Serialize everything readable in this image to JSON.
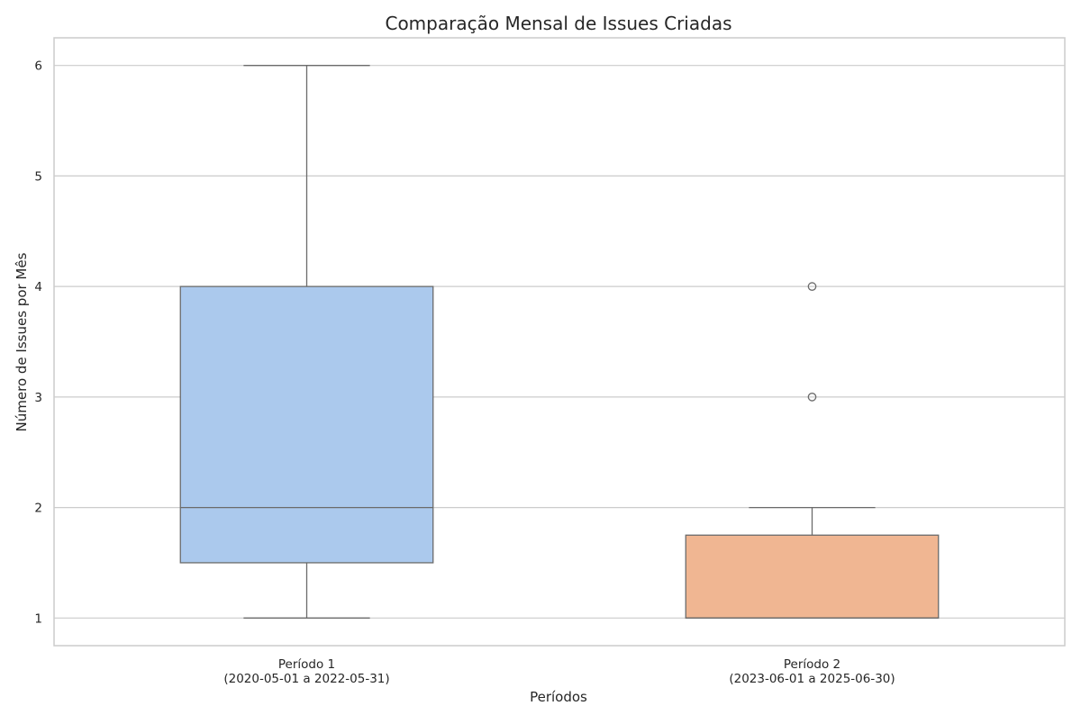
{
  "chart_data": {
    "type": "box",
    "title": "Comparação Mensal de Issues Criadas",
    "xlabel": "Períodos",
    "ylabel": "Número de Issues por Mês",
    "ylim": [
      0.75,
      6.25
    ],
    "yticks": [
      1,
      2,
      3,
      4,
      5,
      6
    ],
    "grid": true,
    "categories": [
      [
        "Período 1",
        "(2020-05-01 a 2022-05-31)"
      ],
      [
        "Período 2",
        "(2023-06-01 a 2025-06-30)"
      ]
    ],
    "boxes": [
      {
        "whisker_low": 1,
        "q1": 1.5,
        "median": 2,
        "q3": 4,
        "whisker_high": 6,
        "fliers": [],
        "color": "#abc9ed"
      },
      {
        "whisker_low": 1,
        "q1": 1,
        "median": 1,
        "q3": 1.75,
        "whisker_high": 2,
        "fliers": [
          3,
          4
        ],
        "color": "#f0b692"
      }
    ]
  }
}
